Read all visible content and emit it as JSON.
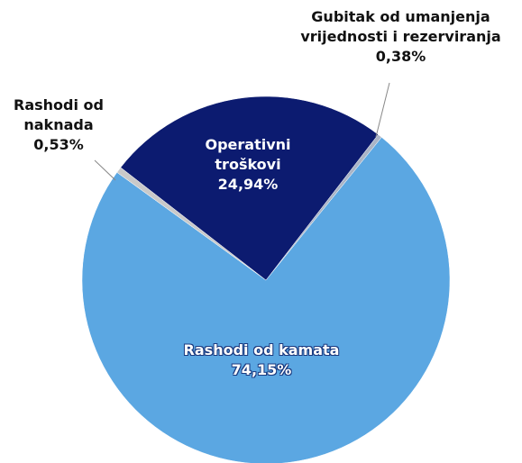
{
  "chart_data": {
    "type": "pie",
    "categories": [
      "Gubitak od umanjenja vrijednosti i rezerviranja",
      "Rashodi od kamata",
      "Rashodi od naknada",
      "Operativni troškovi"
    ],
    "values": [
      0.38,
      74.15,
      0.53,
      24.94
    ],
    "value_labels": [
      "0,38%",
      "74,15%",
      "0,53%",
      "24,94%"
    ],
    "colors": [
      "#aab4c6",
      "#5ba7e2",
      "#c9c9c9",
      "#0c1b70"
    ]
  }
}
